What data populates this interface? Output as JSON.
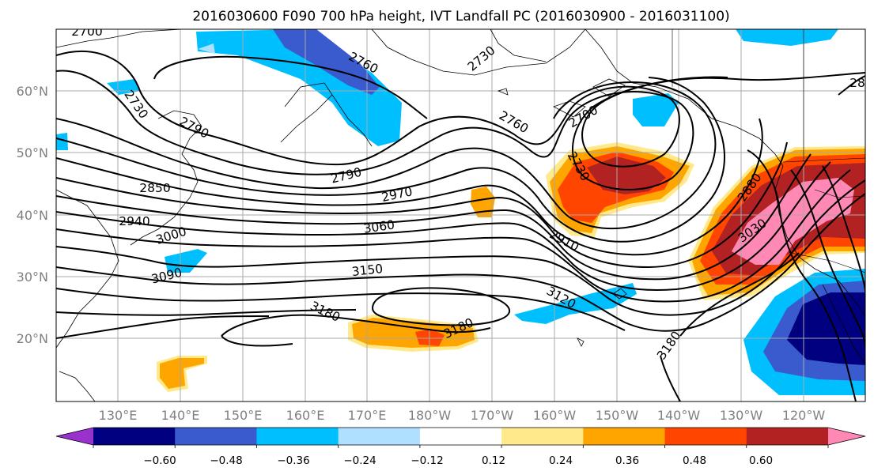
{
  "title": "2016030600 F090 700 hPa height, IVT Landfall PC (2016030900 - 2016031100)",
  "lat_labels": [
    "60°N",
    "50°N",
    "40°N",
    "30°N",
    "20°N"
  ],
  "lon_labels": [
    "130°E",
    "140°E",
    "150°E",
    "160°E",
    "170°E",
    "180°W",
    "170°W",
    "160°W",
    "150°W",
    "140°W",
    "130°W",
    "120°W"
  ],
  "contour_labels": [
    "2700",
    "2760",
    "2730",
    "2730",
    "2790",
    "2760",
    "2700",
    "2850",
    "2790",
    "2730",
    "2970",
    "2940",
    "2880",
    "3000",
    "3060",
    "2910",
    "3030",
    "3090",
    "3150",
    "3120",
    "3180",
    "3180",
    "3180",
    "28"
  ],
  "colorbar": {
    "ticks": [
      "−0.60",
      "−0.48",
      "−0.36",
      "−0.24",
      "−0.12",
      "0.12",
      "0.24",
      "0.36",
      "0.48",
      "0.60"
    ],
    "colors": [
      "#9932cc",
      "#000080",
      "#3a5bcd",
      "#00bfff",
      "#afe0ff",
      "#ffffff",
      "#ffe98a",
      "#ffa500",
      "#ff4500",
      "#b22222",
      "#ff88b5"
    ]
  }
}
